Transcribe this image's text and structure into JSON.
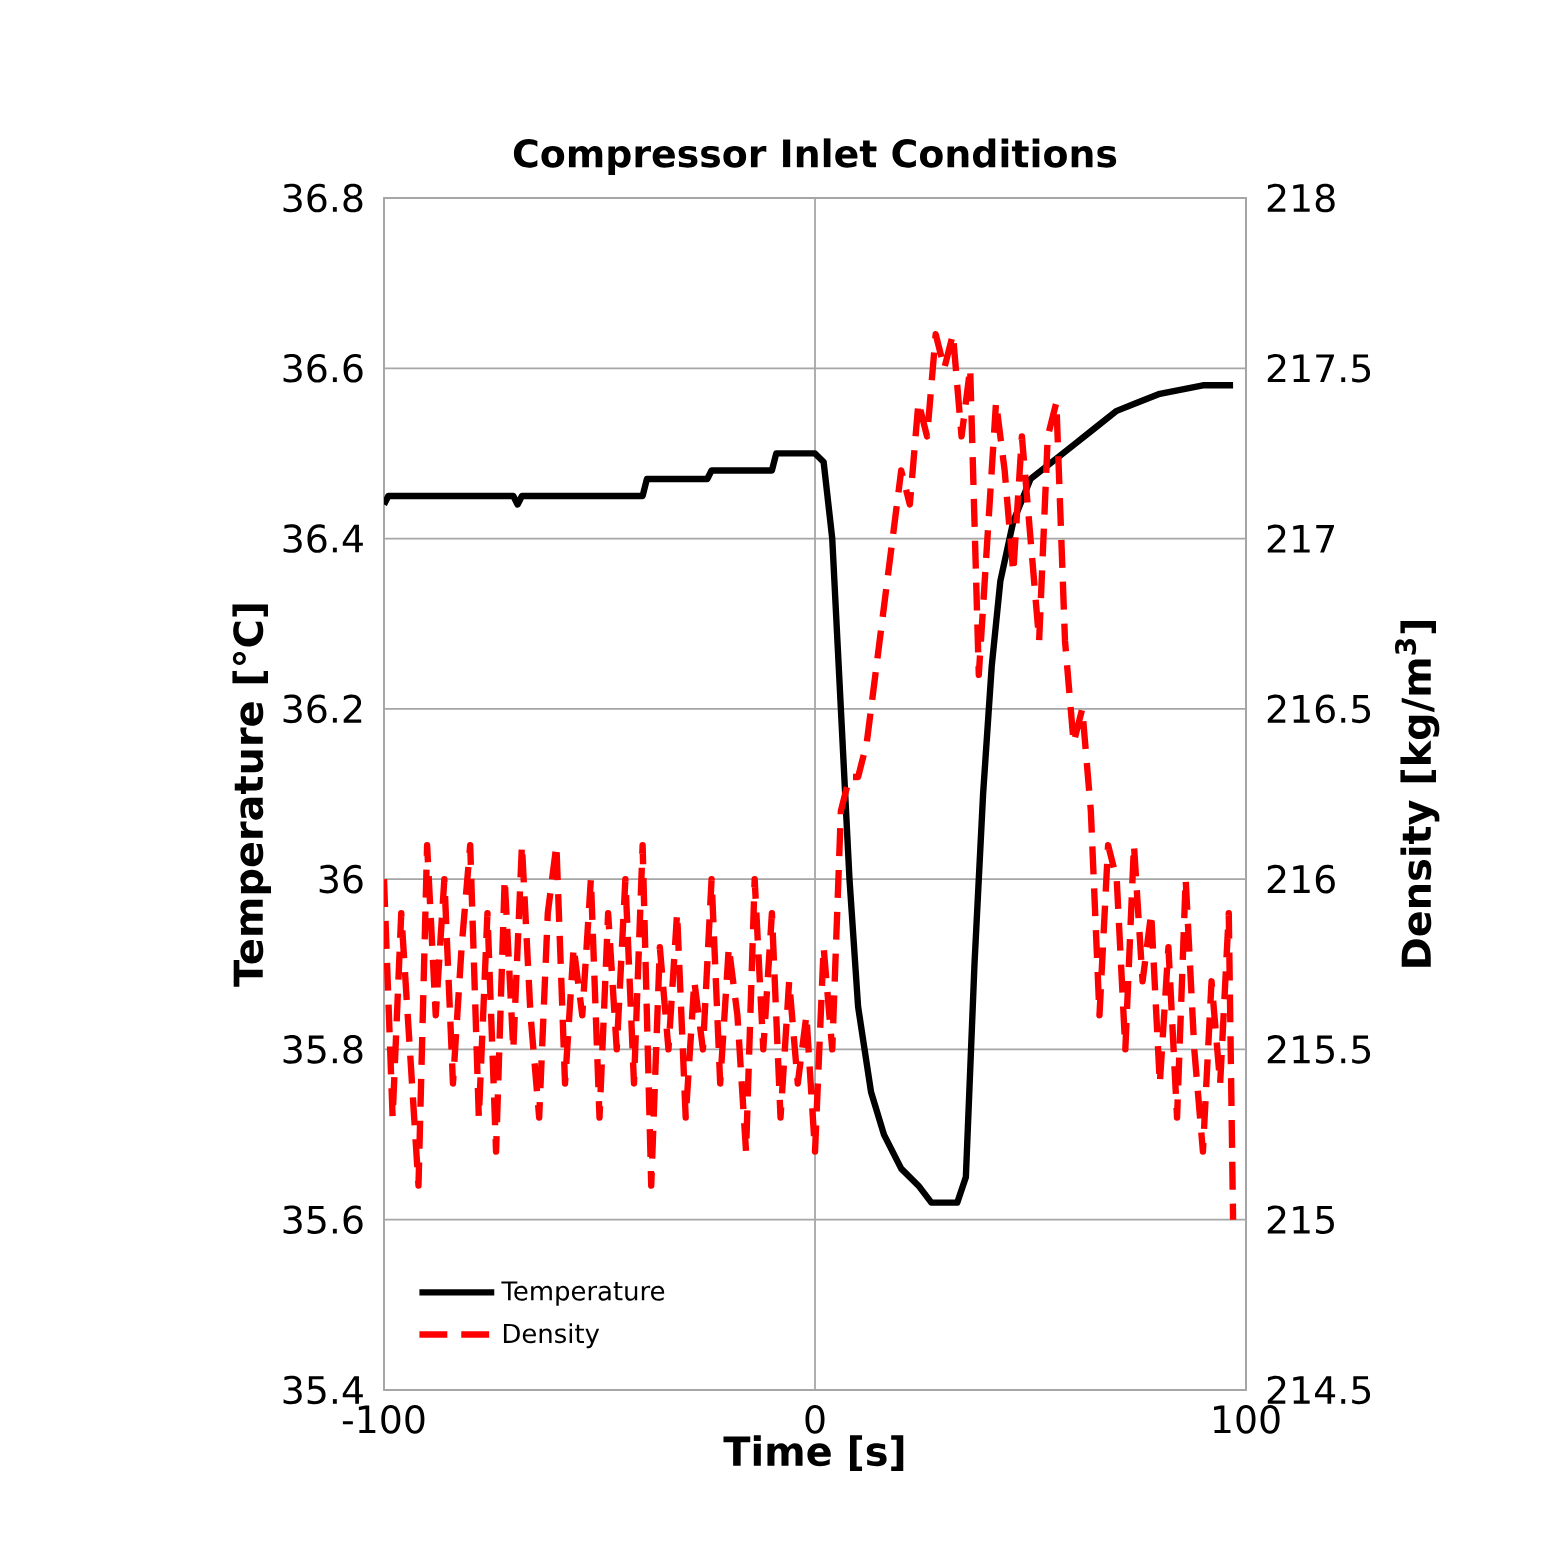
{
  "chart_data": {
    "type": "line",
    "title": "Compressor Inlet Conditions",
    "xlabel": "Time [s]",
    "ylabel": "Temperature [°C]",
    "y2label": "Density [kg/m$^{3}$]",
    "xlim": [
      -100,
      100
    ],
    "xticks": [
      -100,
      0,
      100
    ],
    "ylim": [
      35.4,
      36.8
    ],
    "yticks": [
      35.4,
      35.6,
      35.8,
      36,
      36.2,
      36.4,
      36.6,
      36.8
    ],
    "y2lim": [
      214.5,
      218
    ],
    "y2ticks": [
      214.5,
      215,
      215.5,
      216,
      216.5,
      217,
      217.5,
      218
    ],
    "grid": true,
    "legend": "bottom left",
    "marker": "none",
    "series": [
      {
        "name": "Temperature",
        "color": "#000000",
        "line_style": "solid",
        "x": [
          -100,
          -99,
          -70,
          -69,
          -68,
          -40,
          -39,
          -25,
          -24,
          -10,
          -9,
          0,
          2,
          4,
          6,
          8,
          10,
          13,
          16,
          20,
          24,
          27,
          33,
          35,
          37,
          39,
          41,
          43,
          46,
          50,
          55,
          60,
          65,
          70,
          75,
          80,
          90,
          97
        ],
        "values": [
          36.44,
          36.45,
          36.45,
          36.44,
          36.45,
          36.45,
          36.47,
          36.47,
          36.48,
          36.48,
          36.5,
          36.5,
          36.49,
          36.4,
          36.2,
          36.0,
          35.85,
          35.75,
          35.7,
          35.66,
          35.64,
          35.62,
          35.62,
          35.65,
          35.9,
          36.1,
          36.25,
          36.35,
          36.42,
          36.47,
          36.49,
          36.51,
          36.53,
          36.55,
          36.56,
          36.57,
          36.58,
          36.58
        ]
      },
      {
        "name": "Density",
        "color": "#ff0000",
        "line_style": "dashed",
        "axis": "y2",
        "x": [
          -100,
          -98,
          -96,
          -94,
          -92,
          -90,
          -88,
          -86,
          -84,
          -82,
          -80,
          -78,
          -76,
          -74,
          -72,
          -70,
          -68,
          -66,
          -64,
          -62,
          -60,
          -58,
          -56,
          -54,
          -52,
          -50,
          -48,
          -46,
          -44,
          -42,
          -40,
          -38,
          -36,
          -34,
          -32,
          -30,
          -28,
          -26,
          -24,
          -22,
          -20,
          -18,
          -16,
          -14,
          -12,
          -10,
          -8,
          -6,
          -4,
          -2,
          0,
          2,
          4,
          6,
          8,
          10,
          12,
          14,
          16,
          18,
          20,
          22,
          24,
          26,
          28,
          30,
          32,
          34,
          36,
          38,
          40,
          42,
          44,
          46,
          48,
          50,
          52,
          54,
          56,
          58,
          60,
          62,
          64,
          66,
          68,
          70,
          72,
          74,
          76,
          78,
          80,
          82,
          84,
          86,
          88,
          90,
          92,
          94,
          96,
          97
        ],
        "values": [
          216.0,
          215.3,
          215.9,
          215.5,
          215.1,
          216.1,
          215.6,
          216.0,
          215.4,
          215.8,
          216.1,
          215.3,
          215.9,
          215.2,
          216.0,
          215.5,
          216.1,
          215.6,
          215.3,
          215.9,
          216.1,
          215.4,
          215.8,
          215.6,
          216.0,
          215.3,
          215.9,
          215.5,
          216.0,
          215.4,
          216.1,
          215.1,
          215.8,
          215.5,
          215.9,
          215.3,
          215.7,
          215.5,
          216.0,
          215.4,
          215.8,
          215.6,
          215.2,
          216.0,
          215.5,
          215.9,
          215.3,
          215.7,
          215.4,
          215.6,
          215.2,
          215.8,
          215.5,
          216.2,
          216.3,
          216.3,
          216.4,
          216.6,
          216.8,
          217.0,
          217.2,
          217.1,
          217.4,
          217.3,
          217.6,
          217.5,
          217.6,
          217.3,
          217.5,
          216.6,
          217.0,
          217.4,
          217.2,
          216.9,
          217.3,
          217.0,
          216.7,
          217.3,
          217.4,
          216.7,
          216.4,
          216.5,
          216.2,
          215.6,
          216.1,
          216.0,
          215.5,
          216.1,
          215.7,
          215.9,
          215.4,
          215.8,
          215.3,
          216.0,
          215.5,
          215.2,
          215.7,
          215.4,
          215.9,
          215.0
        ]
      }
    ]
  }
}
